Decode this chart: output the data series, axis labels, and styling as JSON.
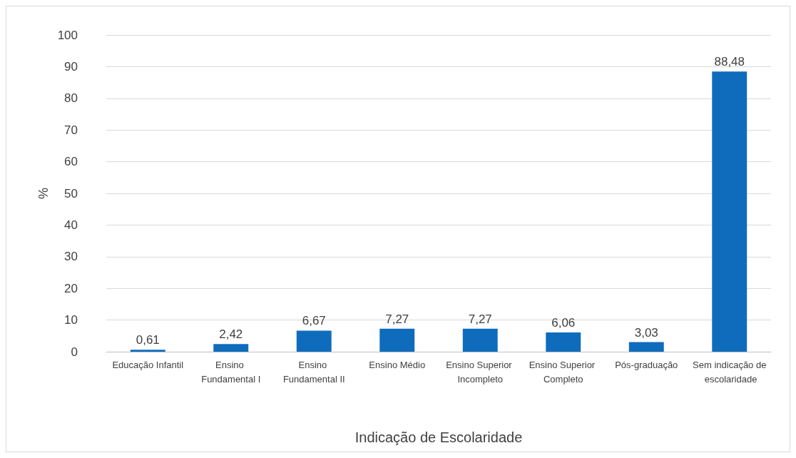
{
  "chart_data": {
    "type": "bar",
    "xlabel": "Indicação de Escolaridade",
    "ylabel": "%",
    "categories": [
      "Educação Infantil",
      "Ensino Fundamental I",
      "Ensino Fundamental II",
      "Ensino Médio",
      "Ensino Superior Incompleto",
      "Ensino Superior Completo",
      "Pós-graduação",
      "Sem indicação de escolaridade"
    ],
    "values": [
      0.61,
      2.42,
      6.67,
      7.27,
      7.27,
      6.06,
      3.03,
      88.48
    ],
    "value_labels": [
      "0,61",
      "2,42",
      "6,67",
      "7,27",
      "7,27",
      "6,06",
      "3,03",
      "88,48"
    ],
    "color": "#0f6cbd",
    "ylim": [
      0,
      100
    ],
    "yticks": [
      0,
      10,
      20,
      30,
      40,
      50,
      60,
      70,
      80,
      90,
      100
    ],
    "grid": "y"
  }
}
